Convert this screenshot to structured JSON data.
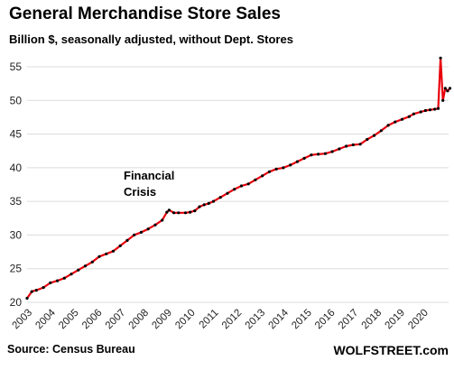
{
  "title": "General Merchandise Store Sales",
  "subtitle": "Billion $, seasonally adjusted, without Dept. Stores",
  "source": "Source: Census Bureau",
  "brand": "WOLFSTREET.com",
  "colors": {
    "line": "#e8000b",
    "marker": "#000000",
    "grid": "#dcdcdc"
  },
  "chart_data": {
    "type": "line",
    "title": "General Merchandise Store Sales",
    "subtitle": "Billion $, seasonally adjusted, without Dept. Stores",
    "xlabel": "",
    "ylabel": "",
    "ylim": [
      20,
      56
    ],
    "yticks": [
      20,
      25,
      30,
      35,
      40,
      45,
      50,
      55
    ],
    "xlim": [
      2003,
      2020.5
    ],
    "xticks": [
      "2003",
      "2004",
      "2005",
      "2006",
      "2007",
      "2008",
      "2009",
      "2010",
      "2011",
      "2012",
      "2013",
      "2014",
      "2015",
      "2016",
      "2017",
      "2018",
      "2019",
      "2020"
    ],
    "grid": true,
    "annotations": [
      {
        "text_lines": [
          "Financial",
          "Crisis"
        ],
        "x": 2008.0,
        "y": 33.8
      }
    ],
    "series": [
      {
        "markers": true,
        "points": [
          [
            2003.0,
            20.6
          ],
          [
            2003.2,
            21.6
          ],
          [
            2003.4,
            21.8
          ],
          [
            2003.7,
            22.2
          ],
          [
            2004.0,
            22.9
          ],
          [
            2004.3,
            23.2
          ],
          [
            2004.6,
            23.6
          ],
          [
            2004.9,
            24.2
          ],
          [
            2005.2,
            24.8
          ],
          [
            2005.5,
            25.4
          ],
          [
            2005.8,
            26.0
          ],
          [
            2006.1,
            26.8
          ],
          [
            2006.4,
            27.2
          ],
          [
            2006.7,
            27.6
          ],
          [
            2007.0,
            28.4
          ],
          [
            2007.3,
            29.2
          ],
          [
            2007.6,
            30.0
          ],
          [
            2007.9,
            30.4
          ],
          [
            2008.2,
            30.9
          ],
          [
            2008.5,
            31.5
          ],
          [
            2008.8,
            32.2
          ],
          [
            2009.0,
            33.4
          ],
          [
            2009.1,
            33.7
          ],
          [
            2009.3,
            33.3
          ],
          [
            2009.5,
            33.3
          ],
          [
            2009.8,
            33.3
          ],
          [
            2010.0,
            33.4
          ],
          [
            2010.2,
            33.6
          ],
          [
            2010.4,
            34.2
          ],
          [
            2010.6,
            34.5
          ],
          [
            2010.8,
            34.7
          ],
          [
            2011.0,
            35.0
          ],
          [
            2011.3,
            35.6
          ],
          [
            2011.6,
            36.2
          ],
          [
            2011.9,
            36.8
          ],
          [
            2012.2,
            37.3
          ],
          [
            2012.5,
            37.6
          ],
          [
            2012.8,
            38.2
          ],
          [
            2013.1,
            38.8
          ],
          [
            2013.4,
            39.4
          ],
          [
            2013.7,
            39.8
          ],
          [
            2014.0,
            40.0
          ],
          [
            2014.3,
            40.4
          ],
          [
            2014.6,
            40.9
          ],
          [
            2014.9,
            41.4
          ],
          [
            2015.2,
            41.9
          ],
          [
            2015.5,
            42.0
          ],
          [
            2015.8,
            42.1
          ],
          [
            2016.1,
            42.4
          ],
          [
            2016.4,
            42.8
          ],
          [
            2016.7,
            43.2
          ],
          [
            2017.0,
            43.4
          ],
          [
            2017.3,
            43.5
          ],
          [
            2017.6,
            44.2
          ],
          [
            2017.9,
            44.8
          ],
          [
            2018.2,
            45.5
          ],
          [
            2018.5,
            46.3
          ],
          [
            2018.8,
            46.8
          ],
          [
            2019.1,
            47.2
          ],
          [
            2019.4,
            47.6
          ],
          [
            2019.6,
            48.0
          ],
          [
            2019.9,
            48.3
          ],
          [
            2020.1,
            48.5
          ],
          [
            2020.3,
            48.6
          ],
          [
            2020.5,
            48.7
          ],
          [
            2020.65,
            48.8
          ],
          [
            2020.75,
            56.3
          ],
          [
            2020.85,
            50.0
          ],
          [
            2020.95,
            51.8
          ],
          [
            2021.05,
            51.4
          ],
          [
            2021.15,
            51.8
          ]
        ]
      }
    ]
  }
}
